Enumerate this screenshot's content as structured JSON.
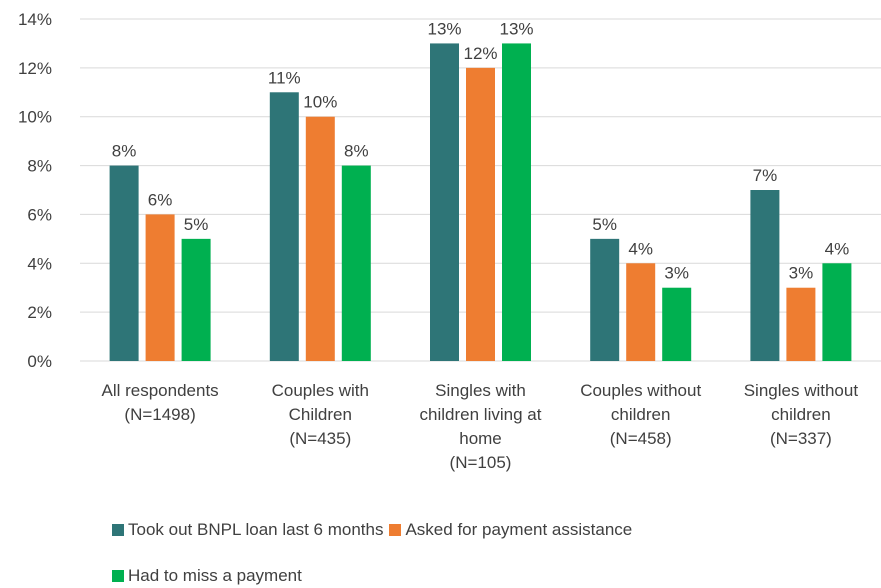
{
  "chart_data": {
    "type": "bar",
    "categories": [
      [
        "All respondents",
        "(N=1498)"
      ],
      [
        "Couples with",
        "Children",
        "(N=435)"
      ],
      [
        "Singles with",
        "children living at",
        "home",
        "(N=105)"
      ],
      [
        "Couples without",
        "children",
        "(N=458)"
      ],
      [
        "Singles without",
        "children",
        "(N=337)"
      ]
    ],
    "series": [
      {
        "name": "Took out BNPL loan last 6 months",
        "color": "#2e7577",
        "values": [
          8,
          11,
          13,
          5,
          7
        ],
        "labels": [
          "8%",
          "11%",
          "13%",
          "5%",
          "7%"
        ]
      },
      {
        "name": "Asked for payment assistance",
        "color": "#ee7d31",
        "values": [
          6,
          10,
          12,
          4,
          3
        ],
        "labels": [
          "6%",
          "10%",
          "12%",
          "4%",
          "3%"
        ]
      },
      {
        "name": "Had to miss a payment",
        "color": "#00b050",
        "values": [
          5,
          8,
          13,
          3,
          4
        ],
        "labels": [
          "5%",
          "8%",
          "13%",
          "3%",
          "4%"
        ]
      }
    ],
    "ylim": [
      0,
      14
    ],
    "yticks": [
      "0%",
      "2%",
      "4%",
      "6%",
      "8%",
      "10%",
      "12%",
      "14%"
    ],
    "grid": true,
    "legend_position": "bottom"
  }
}
